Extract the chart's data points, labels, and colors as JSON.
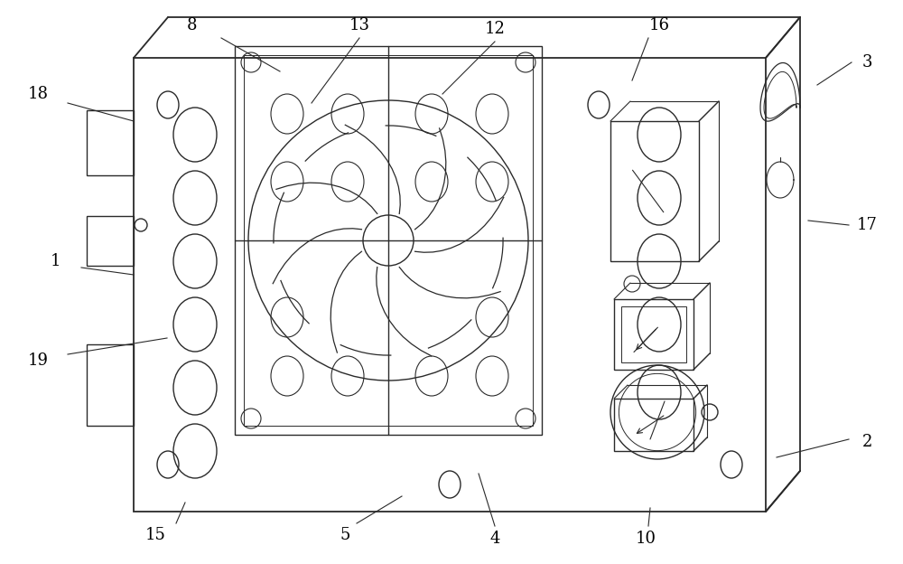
{
  "bg_color": "#ffffff",
  "line_color": "#2a2a2a",
  "label_color": "#000000",
  "fig_width": 10.0,
  "fig_height": 6.24,
  "lw_main": 1.0,
  "lw_thick": 1.3
}
